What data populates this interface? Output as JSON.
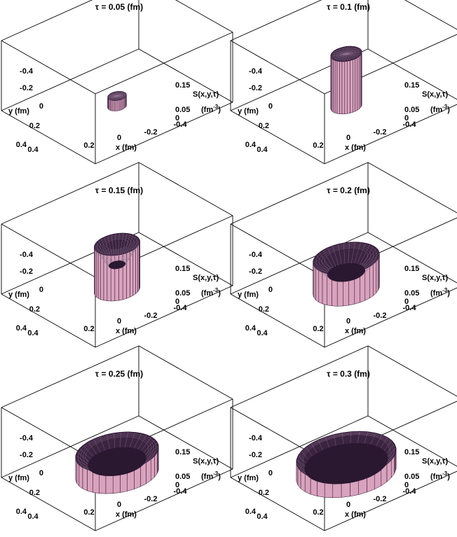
{
  "chart_data": [
    {
      "type": "surface3d",
      "title": "τ = 0.05 (fm)",
      "tau_fm": 0.05,
      "outer_radius_fm": 0.045,
      "inner_radius_fm": 0.0,
      "height": 0.03,
      "zlim": [
        0,
        0.2
      ],
      "xlabel": "x  (fm)",
      "ylabel": "y  (fm)",
      "zlabel": [
        "S(x,y,τ)",
        "(fm-3)"
      ],
      "x_ticks": [
        "0.4",
        "0.2",
        "0",
        "-0.2",
        "-0.4"
      ],
      "y_ticks": [
        "-0.4",
        "-0.2",
        "0",
        "0.2",
        "0.4"
      ],
      "z_ticks": [
        "0.15",
        "0.05",
        "0"
      ],
      "colors": {
        "surface": "#d9a3bd",
        "edge": "#2a1030"
      }
    },
    {
      "type": "surface3d",
      "title": "τ = 0.1 (fm)",
      "tau_fm": 0.1,
      "outer_radius_fm": 0.075,
      "inner_radius_fm": 0.0,
      "height": 0.15,
      "zlim": [
        0,
        0.2
      ],
      "xlabel": "x  (fm)",
      "ylabel": "y  (fm)",
      "zlabel": [
        "S(x,y,τ)",
        "(fm-3)"
      ],
      "x_ticks": [
        "0.4",
        "0.2",
        "0",
        "-0.2",
        "-0.4"
      ],
      "y_ticks": [
        "-0.4",
        "-0.2",
        "0",
        "0.2",
        "0.4"
      ],
      "z_ticks": [
        "0.15",
        "0.05",
        "0"
      ],
      "colors": {
        "surface": "#d9a3bd",
        "edge": "#2a1030"
      }
    },
    {
      "type": "surface3d",
      "title": "τ = 0.15 (fm)",
      "tau_fm": 0.15,
      "outer_radius_fm": 0.11,
      "inner_radius_fm": 0.04,
      "height": 0.13,
      "zlim": [
        0,
        0.2
      ],
      "xlabel": "x  (fm)",
      "ylabel": "y  (fm)",
      "zlabel": [
        "S(x,y,τ)",
        "(fm-3)"
      ],
      "x_ticks": [
        "0.4",
        "0.2",
        "0",
        "-0.2",
        "-0.4"
      ],
      "y_ticks": [
        "-0.4",
        "-0.2",
        "0",
        "0.2",
        "0.4"
      ],
      "z_ticks": [
        "0.15",
        "0.05",
        "0"
      ],
      "colors": {
        "surface": "#d9a3bd",
        "edge": "#2a1030"
      }
    },
    {
      "type": "surface3d",
      "title": "τ = 0.2 (fm)",
      "tau_fm": 0.2,
      "outer_radius_fm": 0.16,
      "inner_radius_fm": 0.09,
      "height": 0.09,
      "zlim": [
        0,
        0.2
      ],
      "xlabel": "x  (fm)",
      "ylabel": "y  (fm)",
      "zlabel": [
        "S(x,y,τ)",
        "(fm-3)"
      ],
      "x_ticks": [
        "0.4",
        "0.2",
        "0",
        "-0.2",
        "-0.4"
      ],
      "y_ticks": [
        "-0.4",
        "-0.2",
        "0",
        "0.2",
        "0.4"
      ],
      "z_ticks": [
        "0.15",
        "0.05",
        "0"
      ],
      "colors": {
        "surface": "#d9a3bd",
        "edge": "#2a1030"
      }
    },
    {
      "type": "surface3d",
      "title": "τ = 0.25 (fm)",
      "tau_fm": 0.25,
      "outer_radius_fm": 0.2,
      "inner_radius_fm": 0.14,
      "height": 0.06,
      "zlim": [
        0,
        0.2
      ],
      "xlabel": "x  (fm)",
      "ylabel": "y  (fm)",
      "zlabel": [
        "S(x,y,τ)",
        "(fm-3)"
      ],
      "x_ticks": [
        "0.4",
        "0.2",
        "0",
        "-0.2",
        "-0.4"
      ],
      "y_ticks": [
        "-0.4",
        "-0.2",
        "0",
        "0.2",
        "0.4"
      ],
      "z_ticks": [
        "0.15",
        "0.05",
        "0"
      ],
      "colors": {
        "surface": "#d9a3bd",
        "edge": "#2a1030"
      }
    },
    {
      "type": "surface3d",
      "title": "τ = 0.3 (fm)",
      "tau_fm": 0.3,
      "outer_radius_fm": 0.24,
      "inner_radius_fm": 0.2,
      "height": 0.05,
      "zlim": [
        0,
        0.2
      ],
      "xlabel": "x  (fm)",
      "ylabel": "y  (fm)",
      "zlabel": [
        "S(x,y,τ)",
        "(fm-3)"
      ],
      "x_ticks": [
        "0.4",
        "0.2",
        "0",
        "-0.2",
        "-0.4"
      ],
      "y_ticks": [
        "-0.4",
        "-0.2",
        "0",
        "0.2",
        "0.4"
      ],
      "z_ticks": [
        "0.15",
        "0.05",
        "0"
      ],
      "colors": {
        "surface": "#d9a3bd",
        "edge": "#2a1030"
      }
    }
  ]
}
